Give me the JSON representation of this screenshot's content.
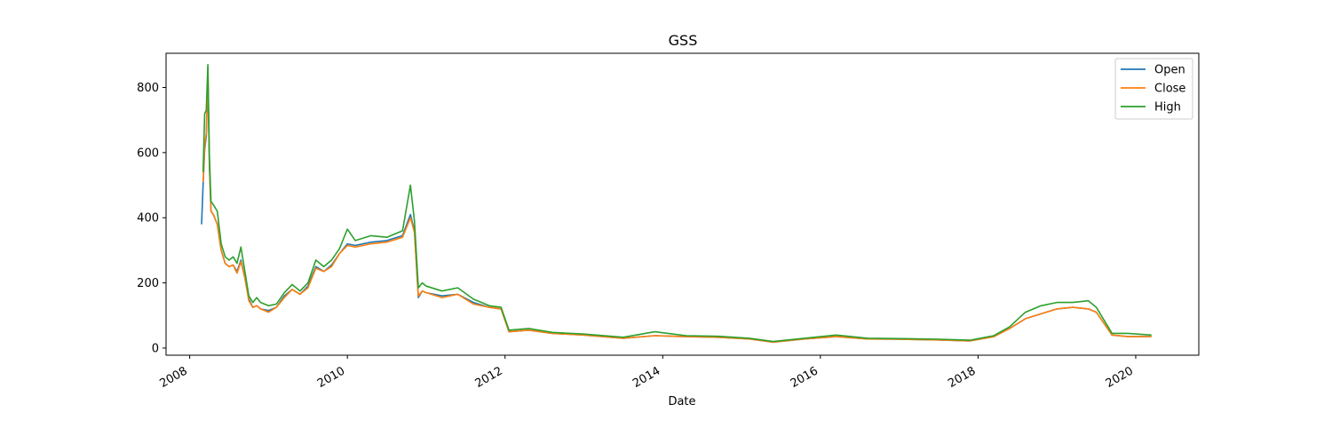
{
  "chart_data": {
    "type": "line",
    "title": "GSS",
    "xlabel": "Date",
    "ylabel": "",
    "xlim": [
      2007.7,
      2020.8
    ],
    "ylim": [
      -22,
      905
    ],
    "x_ticks": [
      2008,
      2010,
      2012,
      2014,
      2016,
      2018,
      2020
    ],
    "x_tick_labels": [
      "2008",
      "2010",
      "2012",
      "2014",
      "2016",
      "2018",
      "2020"
    ],
    "y_ticks": [
      0,
      200,
      400,
      600,
      800
    ],
    "y_tick_labels": [
      "0",
      "200",
      "400",
      "600",
      "800"
    ],
    "grid": false,
    "legend_position": "top-right",
    "series": [
      {
        "name": "Open",
        "color": "#1f77b4",
        "x": [
          2008.15,
          2008.17,
          2008.19,
          2008.21,
          2008.23,
          2008.25,
          2008.27,
          2008.3,
          2008.35,
          2008.4,
          2008.45,
          2008.5,
          2008.55,
          2008.6,
          2008.65,
          2008.7,
          2008.75,
          2008.8,
          2008.85,
          2008.9,
          2009.0,
          2009.1,
          2009.2,
          2009.3,
          2009.4,
          2009.5,
          2009.6,
          2009.7,
          2009.8,
          2009.9,
          2010.0,
          2010.1,
          2010.3,
          2010.5,
          2010.7,
          2010.8,
          2010.85,
          2010.9,
          2010.95,
          2011.0,
          2011.2,
          2011.4,
          2011.6,
          2011.8,
          2011.95,
          2012.05,
          2012.3,
          2012.6,
          2013.0,
          2013.5,
          2013.9,
          2014.3,
          2014.7,
          2015.1,
          2015.4,
          2015.8,
          2016.2,
          2016.6,
          2017.0,
          2017.5,
          2017.9,
          2018.2,
          2018.4,
          2018.6,
          2018.8,
          2019.0,
          2019.2,
          2019.4,
          2019.5,
          2019.7,
          2019.9,
          2020.2
        ],
        "values": [
          380,
          500,
          610,
          650,
          830,
          560,
          420,
          410,
          380,
          300,
          260,
          250,
          255,
          235,
          270,
          215,
          150,
          125,
          130,
          120,
          115,
          125,
          160,
          180,
          165,
          190,
          250,
          235,
          255,
          290,
          320,
          315,
          325,
          330,
          345,
          410,
          360,
          155,
          175,
          170,
          160,
          165,
          140,
          125,
          120,
          50,
          55,
          45,
          40,
          30,
          38,
          35,
          33,
          28,
          18,
          28,
          35,
          28,
          27,
          25,
          22,
          35,
          60,
          90,
          105,
          120,
          125,
          120,
          110,
          40,
          35,
          35
        ]
      },
      {
        "name": "Close",
        "color": "#ff7f0e",
        "x": [
          2008.17,
          2008.19,
          2008.21,
          2008.23,
          2008.25,
          2008.27,
          2008.3,
          2008.35,
          2008.4,
          2008.45,
          2008.5,
          2008.55,
          2008.6,
          2008.65,
          2008.7,
          2008.75,
          2008.8,
          2008.85,
          2008.9,
          2009.0,
          2009.1,
          2009.2,
          2009.3,
          2009.4,
          2009.5,
          2009.6,
          2009.7,
          2009.8,
          2009.9,
          2010.0,
          2010.1,
          2010.3,
          2010.5,
          2010.7,
          2010.8,
          2010.85,
          2010.9,
          2010.95,
          2011.0,
          2011.2,
          2011.4,
          2011.6,
          2011.8,
          2011.95,
          2012.05,
          2012.3,
          2012.6,
          2013.0,
          2013.5,
          2013.9,
          2014.3,
          2014.7,
          2015.1,
          2015.4,
          2015.8,
          2016.2,
          2016.6,
          2017.0,
          2017.5,
          2017.9,
          2018.2,
          2018.4,
          2018.6,
          2018.8,
          2019.0,
          2019.2,
          2019.4,
          2019.5,
          2019.7,
          2019.9,
          2020.2
        ],
        "values": [
          510,
          620,
          660,
          860,
          570,
          420,
          410,
          380,
          300,
          260,
          250,
          255,
          230,
          265,
          215,
          145,
          125,
          130,
          120,
          110,
          125,
          155,
          180,
          165,
          185,
          245,
          235,
          250,
          290,
          315,
          310,
          320,
          325,
          340,
          400,
          355,
          160,
          175,
          170,
          155,
          165,
          135,
          125,
          120,
          50,
          55,
          45,
          40,
          30,
          38,
          35,
          33,
          28,
          18,
          28,
          35,
          28,
          27,
          25,
          22,
          35,
          60,
          90,
          105,
          120,
          125,
          120,
          110,
          40,
          35,
          35
        ]
      },
      {
        "name": "High",
        "color": "#2ca02c",
        "x": [
          2008.17,
          2008.19,
          2008.21,
          2008.23,
          2008.25,
          2008.27,
          2008.3,
          2008.35,
          2008.4,
          2008.45,
          2008.5,
          2008.55,
          2008.6,
          2008.65,
          2008.7,
          2008.75,
          2008.8,
          2008.85,
          2008.9,
          2009.0,
          2009.1,
          2009.2,
          2009.3,
          2009.4,
          2009.5,
          2009.6,
          2009.7,
          2009.8,
          2009.9,
          2010.0,
          2010.1,
          2010.3,
          2010.5,
          2010.7,
          2010.8,
          2010.85,
          2010.9,
          2010.95,
          2011.0,
          2011.2,
          2011.4,
          2011.6,
          2011.8,
          2011.95,
          2012.05,
          2012.3,
          2012.6,
          2013.0,
          2013.5,
          2013.9,
          2014.3,
          2014.7,
          2015.1,
          2015.4,
          2015.8,
          2016.2,
          2016.6,
          2017.0,
          2017.5,
          2017.9,
          2018.2,
          2018.4,
          2018.6,
          2018.8,
          2019.0,
          2019.2,
          2019.4,
          2019.5,
          2019.7,
          2019.9,
          2020.2
        ],
        "values": [
          540,
          720,
          730,
          870,
          590,
          450,
          440,
          420,
          320,
          280,
          270,
          280,
          260,
          310,
          235,
          160,
          140,
          155,
          140,
          130,
          135,
          170,
          195,
          175,
          200,
          270,
          250,
          270,
          305,
          365,
          330,
          345,
          340,
          360,
          500,
          390,
          185,
          200,
          190,
          175,
          185,
          150,
          130,
          125,
          55,
          60,
          48,
          43,
          33,
          50,
          38,
          36,
          30,
          20,
          30,
          40,
          30,
          29,
          27,
          24,
          38,
          65,
          110,
          130,
          140,
          140,
          145,
          125,
          45,
          45,
          40
        ]
      }
    ]
  }
}
